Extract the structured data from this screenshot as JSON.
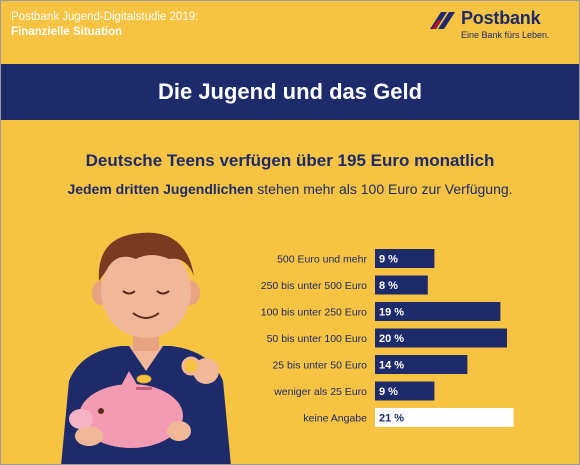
{
  "header": {
    "study": "Postbank Jugend-Digitalstudie 2019:",
    "topic": "Finanzielle Situation"
  },
  "logo": {
    "name": "Postbank",
    "tagline": "Eine Bank fürs Leben.",
    "icon": "postbank-wing-icon"
  },
  "banner": {
    "title": "Die Jugend und das Geld"
  },
  "headline": "Deutsche Teens verfügen über 195 Euro monatlich",
  "subline": {
    "bold": "Jedem dritten Jugendlichen",
    "rest": " stehen mehr als 100 Euro zur Verfügung."
  },
  "illustration": {
    "icon": "boy-with-piggy-bank-icon"
  },
  "colors": {
    "background": "#f6c342",
    "navy": "#1d2b6b",
    "white_bar": "#ffffff"
  },
  "chart_data": {
    "type": "bar",
    "orientation": "horizontal",
    "categories": [
      "500 Euro und mehr",
      "250 bis unter 500 Euro",
      "100 bis unter 250 Euro",
      "50 bis unter 100 Euro",
      "25 bis unter 50 Euro",
      "weniger als 25 Euro",
      "keine Angabe"
    ],
    "values": [
      9,
      8,
      19,
      20,
      14,
      9,
      21
    ],
    "value_labels": [
      "9 %",
      "8 %",
      "19 %",
      "20 %",
      "14 %",
      "9 %",
      "21 %"
    ],
    "highlight_last": true,
    "unit": "%"
  }
}
